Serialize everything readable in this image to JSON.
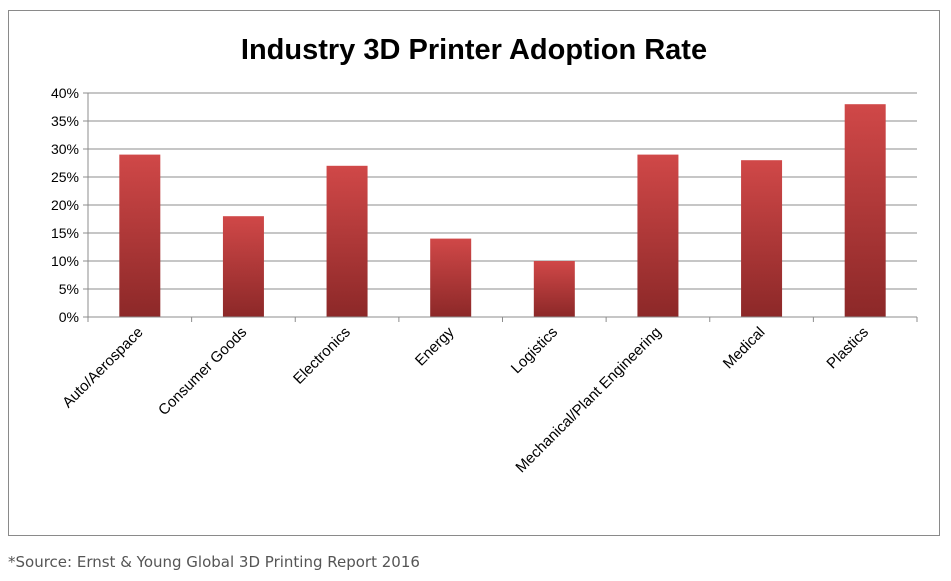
{
  "chart_data": {
    "type": "bar",
    "title": "Industry 3D Printer Adoption Rate",
    "xlabel": "",
    "ylabel": "",
    "categories": [
      "Auto/Aerospace",
      "Consumer Goods",
      "Electronics",
      "Energy",
      "Logistics",
      "Mechanical/Plant Engineering",
      "Medical",
      "Plastics"
    ],
    "values": [
      29,
      18,
      27,
      14,
      10,
      29,
      28,
      38
    ],
    "value_format": "percent",
    "ylim": [
      0,
      40
    ],
    "ytick_step": 5,
    "ytick_labels": [
      "0%",
      "5%",
      "10%",
      "15%",
      "20%",
      "25%",
      "30%",
      "35%",
      "40%"
    ],
    "grid": true,
    "legend": "none",
    "colors": {
      "bar_top": "#d04848",
      "bar_bottom": "#8c2828",
      "grid": "#8c8c8c",
      "axis": "#8c8c8c",
      "text": "#000000"
    }
  },
  "footer": {
    "source": "*Source: Ernst & Young Global 3D Printing Report 2016"
  }
}
